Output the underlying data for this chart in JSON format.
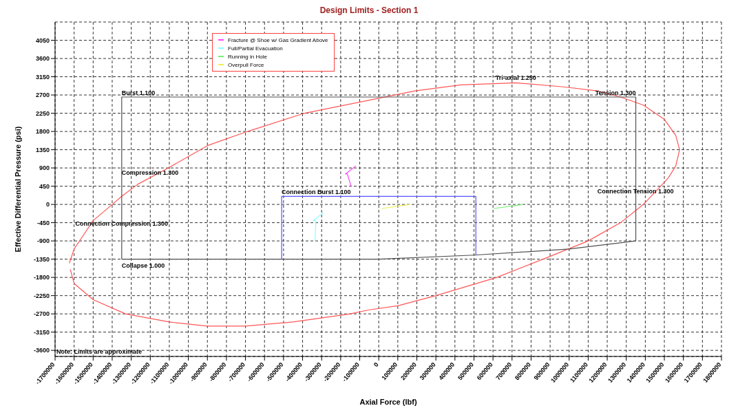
{
  "chart_data": {
    "type": "line",
    "title": "Design Limits - Section 1",
    "xlabel": "Axial Force (lbf)",
    "ylabel": "Effective Differential Pressure (psi)",
    "xlim": [
      -1700000,
      1800000
    ],
    "ylim": [
      -3750,
      4500
    ],
    "xticks": [
      -1700000,
      -1600000,
      -1500000,
      -1400000,
      -1300000,
      -1200000,
      -1100000,
      -1000000,
      -900000,
      -800000,
      -700000,
      -600000,
      -500000,
      -400000,
      -300000,
      -200000,
      -100000,
      0,
      100000,
      200000,
      300000,
      400000,
      500000,
      600000,
      700000,
      800000,
      900000,
      1000000,
      1100000,
      1200000,
      1300000,
      1400000,
      1500000,
      1600000,
      1700000,
      1800000
    ],
    "yticks": [
      -3600,
      -3150,
      -2700,
      -2250,
      -1800,
      -1350,
      -900,
      -450,
      0,
      450,
      900,
      1350,
      1800,
      2250,
      2700,
      3150,
      3600,
      4050
    ],
    "grid": true,
    "legend": "top",
    "marker": "none",
    "line_style": "solid",
    "series": [
      {
        "color": "#ff5555",
        "x": [
          -1625000,
          -1600000,
          -1550000,
          -1500000,
          -1400000,
          -1350000,
          -1265000,
          -1105000,
          -900000,
          -690000,
          -390000,
          -20000,
          190000,
          430000,
          720000,
          970000,
          1150000,
          1270000,
          1390000,
          1500000,
          1560000,
          1580000,
          1560000,
          1520000,
          1390000,
          1270000,
          1100000,
          890000,
          620000,
          300000,
          100000,
          -50000,
          -150000,
          -450000,
          -700000,
          -900000,
          -1100000,
          -1330000,
          -1500000,
          -1600000,
          -1620000
        ],
        "values": [
          -1450,
          -1100,
          -750,
          -400,
          0,
          200,
          500,
          900,
          1450,
          1800,
          2250,
          2600,
          2800,
          2950,
          3000,
          2900,
          2800,
          2650,
          2450,
          2100,
          1700,
          1350,
          950,
          650,
          0,
          -450,
          -900,
          -1300,
          -1800,
          -2250,
          -2500,
          -2600,
          -2700,
          -2900,
          -3000,
          -3000,
          -2900,
          -2700,
          -2350,
          -1950,
          -1600
        ]
      },
      {
        "color": "#505050",
        "x": [
          -1350000,
          -1350000,
          1350000,
          1350000
        ],
        "values": [
          -1350,
          2650,
          2650,
          -900
        ]
      },
      {
        "color": "#505050",
        "x": [
          1350000,
          1000000,
          500000,
          0,
          -1350000
        ],
        "values": [
          -900,
          -1100,
          -1250,
          -1350,
          -1350
        ]
      },
      {
        "color": "#5555ff",
        "x": [
          -510000,
          -510000,
          510000,
          510000
        ],
        "values": [
          -1350,
          200,
          200,
          -1250
        ]
      },
      {
        "name": "Fracture @ Shoe w/ Gas Gradient Above",
        "color": "#ff44ff",
        "x": [
          -120000,
          -175000,
          -165000,
          -145000
        ],
        "values": [
          950,
          750,
          750,
          450
        ]
      },
      {
        "name": "Full/Partial Evacuation",
        "color": "#88ffff",
        "x": [
          -290000,
          -345000,
          -330000,
          -335000
        ],
        "values": [
          -200,
          -400,
          -400,
          -900
        ]
      },
      {
        "name": "Running in Hole",
        "color": "#77ee77",
        "x": [
          605000,
          760000
        ],
        "values": [
          -100,
          0
        ]
      },
      {
        "name": "Overpull Force",
        "color": "#eeee55",
        "x": [
          15000,
          165000
        ],
        "values": [
          -100,
          0
        ]
      }
    ],
    "annotations": [
      {
        "text": "Burst 1.100",
        "x": -1350000,
        "y": 2650
      },
      {
        "text": "Tri-axial 1.250",
        "x": 720000,
        "y": 3000
      },
      {
        "text": "Tension 1.300",
        "x": 1350000,
        "y": 2650
      },
      "Compression 1.300",
      {
        "text": "Connection Burst 1.100",
        "x": -510000,
        "y": 200
      },
      "Connection Compression 1.300",
      "Connection Tension 1.300",
      {
        "text": "Collapse 1.000",
        "x": -1350000,
        "y": -1350
      },
      "Note: Limits are approximate"
    ]
  }
}
